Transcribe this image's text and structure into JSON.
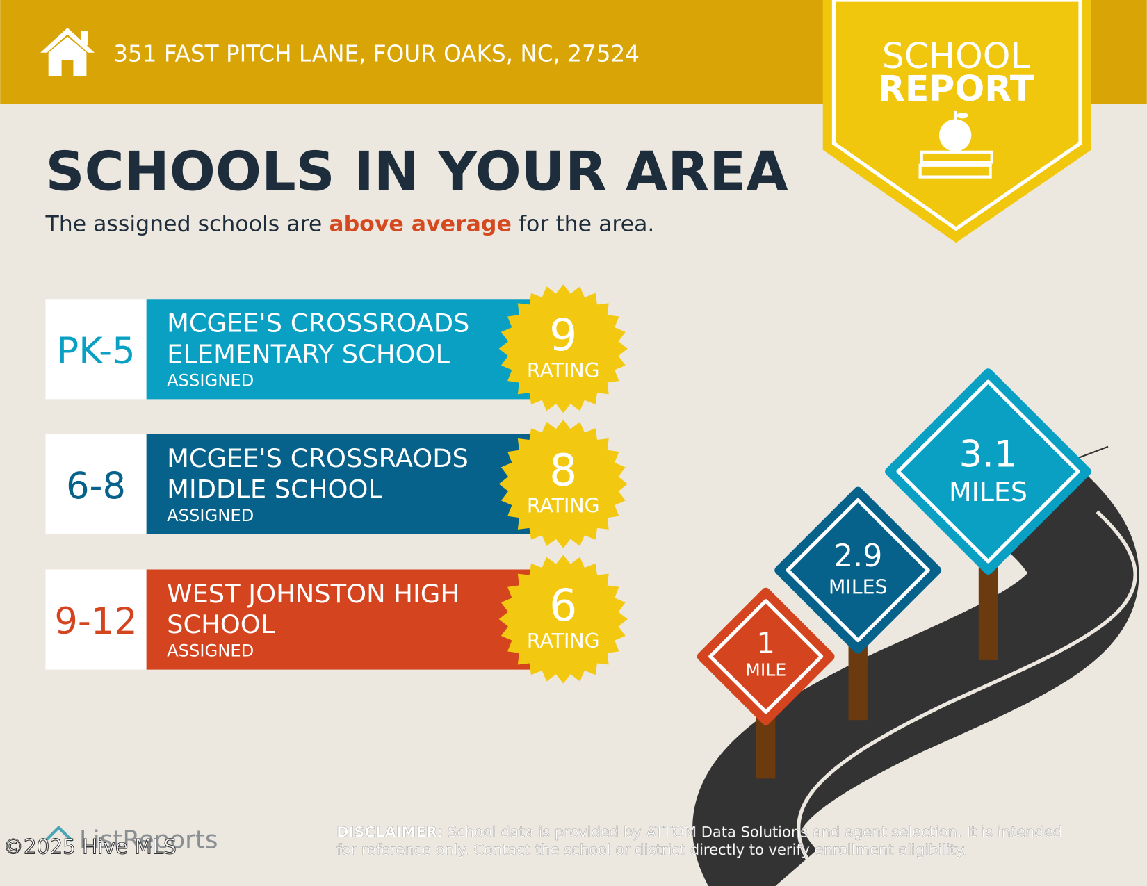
{
  "header": {
    "address": "351 FAST PITCH LANE, FOUR OAKS, NC, 27524"
  },
  "badge": {
    "line1": "SCHOOL",
    "line2": "REPORT"
  },
  "title": "SCHOOLS IN YOUR AREA",
  "subtitle": {
    "before": "The assigned schools are ",
    "highlight": "above average",
    "after": " for the area."
  },
  "schools": [
    {
      "grades": "PK-5",
      "name_lines": [
        "MCGEE'S CROSSROADS",
        "ELEMENTARY SCHOOL"
      ],
      "status": "ASSIGNED",
      "rating": 9,
      "rating_label": "RATING",
      "color": "#0AA0C4"
    },
    {
      "grades": "6-8",
      "name_lines": [
        "MCGEE'S CROSSRAODS",
        "MIDDLE SCHOOL"
      ],
      "status": "ASSIGNED",
      "rating": 8,
      "rating_label": "RATING",
      "color": "#06628A"
    },
    {
      "grades": "9-12",
      "name_lines": [
        "WEST JOHNSTON HIGH",
        "SCHOOL"
      ],
      "status": "ASSIGNED",
      "rating": 6,
      "rating_label": "RATING",
      "color": "#D4451F"
    }
  ],
  "distances": [
    {
      "value": 1,
      "unit": "MILE",
      "color": "#D4451F"
    },
    {
      "value": 2.9,
      "unit": "MILES",
      "color": "#06628A"
    },
    {
      "value": 3.1,
      "unit": "MILES",
      "color": "#0AA0C4"
    }
  ],
  "footer": {
    "brand": "ListReports",
    "watermark": "©2025 Hive MLS",
    "disclaimer_label": "DISCLAIMER:",
    "disclaimer_lines": [
      "School data is provided by ATTOM Data Solutions and agent selection. It is intended",
      "for reference only. Contact the school or district directly to verify enrollment eligibility."
    ]
  }
}
